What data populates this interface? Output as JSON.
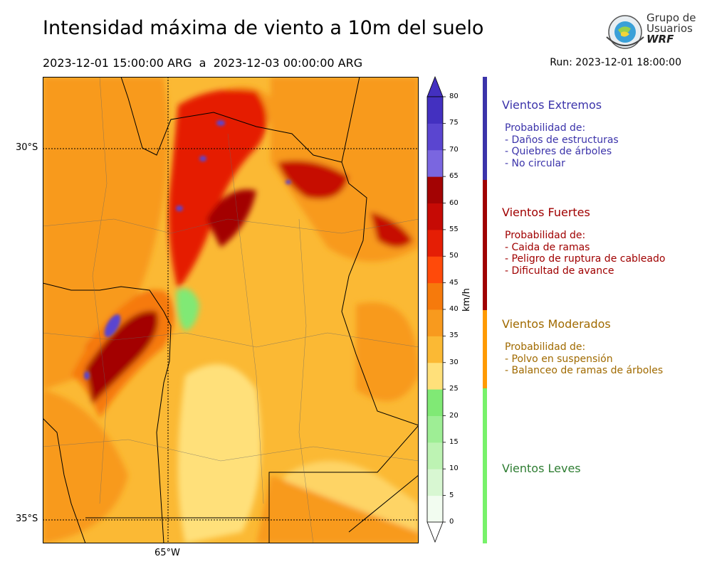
{
  "title": "Intensidad máxima de viento a 10m del suelo",
  "period": "2023-12-01 15:00:00 ARG  a  2023-12-03 00:00:00 ARG",
  "run": "Run: 2023-12-01 18:00:00",
  "logo": {
    "line1": "Grupo de",
    "line2": "Usuarios",
    "line3": "WRF"
  },
  "map": {
    "lat_labels": [
      "30°S",
      "35°S"
    ],
    "lon_labels": [
      "65°W"
    ]
  },
  "colorbar": {
    "units": "km/h",
    "ticks": [
      "0",
      "5",
      "10",
      "15",
      "20",
      "25",
      "30",
      "35",
      "40",
      "45",
      "50",
      "55",
      "60",
      "65",
      "70",
      "75",
      "80"
    ],
    "colors": [
      "#f2fcf0",
      "#d8f7d2",
      "#bdf3b3",
      "#9eee95",
      "#80e975",
      "#ffe07a",
      "#fbb934",
      "#f89a1e",
      "#f67a0c",
      "#ff4a0a",
      "#e51e05",
      "#c60a05",
      "#a30303",
      "#7a66e0",
      "#5a45d0",
      "#4330c0"
    ]
  },
  "categories": [
    {
      "title": "Vientos Extremos",
      "color": "#3b33aa",
      "strip": "#3b33aa",
      "lines": [
        "Probabilidad de:",
        "- Daños de estructuras",
        "- Quiebres de árboles",
        "- No circular"
      ]
    },
    {
      "title": "Vientos Fuertes",
      "color": "#a00000",
      "strip": "#a00000",
      "lines": [
        "Probabilidad de:",
        "- Caida de ramas",
        "- Peligro de ruptura de cableado",
        "- Dificultad de avance"
      ]
    },
    {
      "title": "Vientos Moderados",
      "color": "#a06a00",
      "strip": "#ff9a00",
      "lines": [
        "Probabilidad de:",
        "- Polvo en suspensión",
        "- Balanceo de ramas de árboles"
      ]
    },
    {
      "title": "Vientos Leves",
      "color": "#2e7d32",
      "strip": "#77f26a",
      "lines": []
    }
  ]
}
